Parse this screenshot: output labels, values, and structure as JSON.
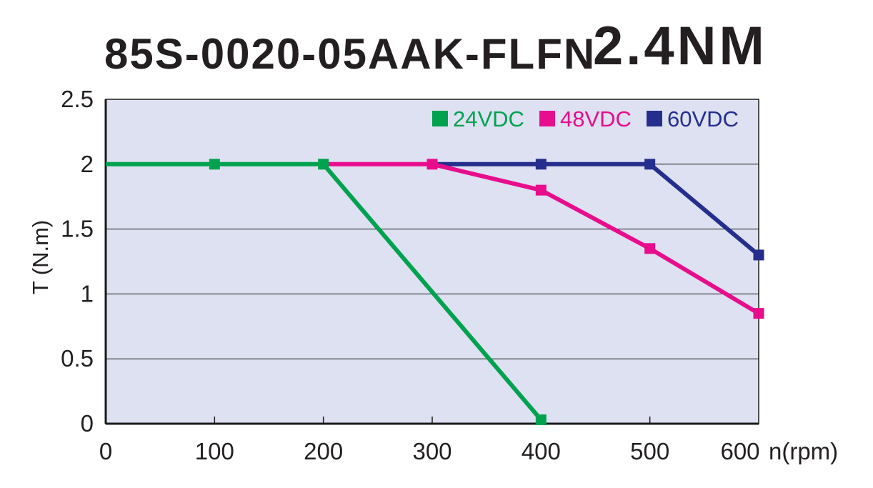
{
  "title": {
    "model": "85S-0020-05AAK-FLFN",
    "torque": "2.4NM"
  },
  "colors": {
    "text": "#231f20",
    "axis": "#1a1a1a",
    "grid": "#1a1a1a",
    "plot_background": "#dee1f2",
    "page_background": "#ffffff",
    "series_24vdc": "#00a24f",
    "series_48vdc": "#e80d8c",
    "series_60vdc": "#262e8d"
  },
  "chart_data": {
    "type": "line",
    "title": "85S-0020-05AAK-FLFN 2.4NM",
    "xlabel": "n(rpm)",
    "ylabel": "T (N.m)",
    "xlim": [
      0,
      600
    ],
    "ylim": [
      0,
      2.5
    ],
    "x_ticks": [
      0,
      100,
      200,
      300,
      400,
      500,
      600
    ],
    "x_tick_labels": [
      "0",
      "100",
      "200",
      "300",
      "400",
      "500",
      "600"
    ],
    "y_ticks": [
      0,
      0.5,
      1,
      1.5,
      2,
      2.5
    ],
    "y_tick_labels": [
      "0",
      "0.5",
      "1",
      "1.5",
      "2",
      "2.5"
    ],
    "grid": "horizontal",
    "legend_position": "top-right-inside",
    "series": [
      {
        "name": "24VDC",
        "color": "#00a24f",
        "points": [
          [
            0,
            2
          ],
          [
            100,
            2
          ],
          [
            200,
            2
          ],
          [
            400,
            0.03
          ]
        ]
      },
      {
        "name": "48VDC",
        "color": "#e80d8c",
        "points": [
          [
            200,
            2
          ],
          [
            300,
            2
          ],
          [
            400,
            1.8
          ],
          [
            500,
            1.35
          ],
          [
            600,
            0.85
          ]
        ]
      },
      {
        "name": "60VDC",
        "color": "#262e8d",
        "points": [
          [
            300,
            2
          ],
          [
            400,
            2
          ],
          [
            500,
            2
          ],
          [
            600,
            1.3
          ]
        ]
      }
    ]
  }
}
